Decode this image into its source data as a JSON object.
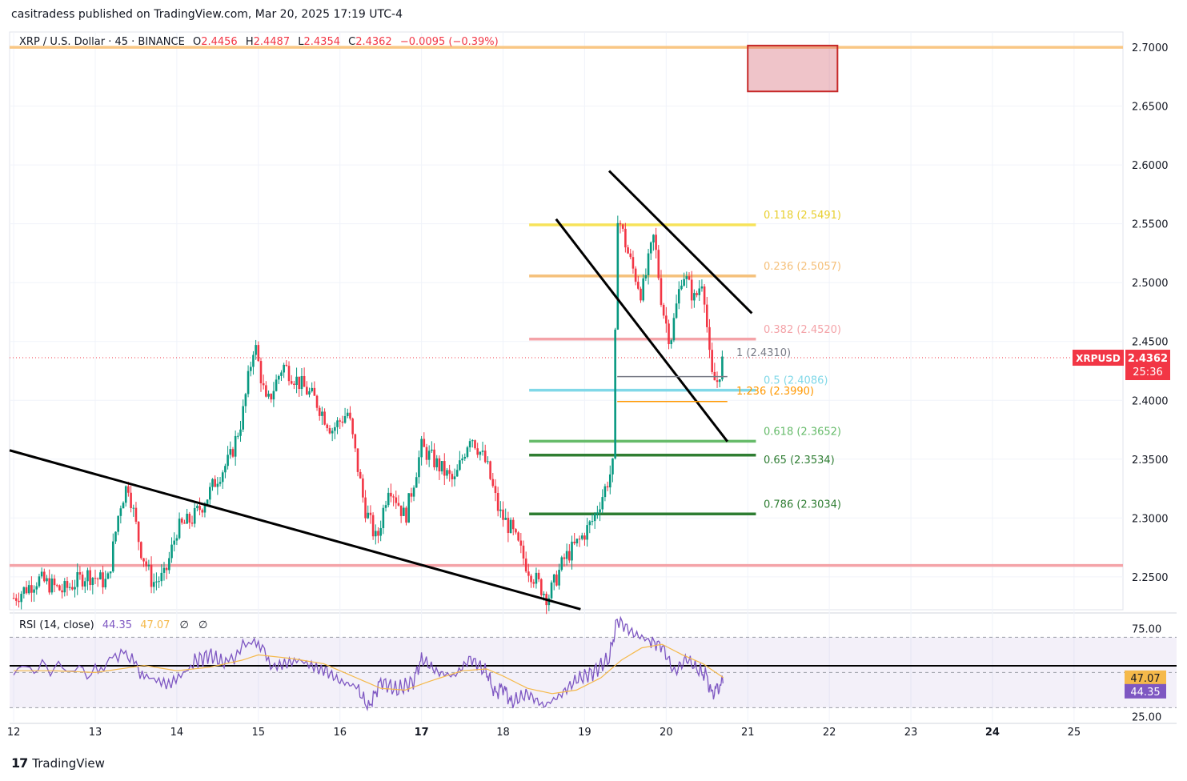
{
  "header": {
    "publisher": "casitradess published on TradingView.com, Mar 20, 2025 17:19 UTC-4"
  },
  "legend": {
    "symbol": "XRP / U.S. Dollar · 45 · BINANCE",
    "o_label": "O",
    "o": "2.4456",
    "h_label": "H",
    "h": "2.4487",
    "l_label": "L",
    "l": "2.4354",
    "c_label": "C",
    "c": "2.4362",
    "change": "−0.0095 (−0.39%)"
  },
  "price_tag": {
    "symbol": "XRPUSD",
    "price": "2.4362",
    "countdown": "25:36",
    "color": "#f23645"
  },
  "rsi_legend": {
    "label": "RSI (14, close)",
    "rsi": "44.35",
    "ma": "47.07",
    "x1": "∅",
    "x2": "∅"
  },
  "rsi_tags": {
    "ma": "47.07",
    "rsi": "44.35"
  },
  "footer": {
    "brand": "TradingView"
  },
  "chart_data": [
    {
      "type": "candlestick",
      "title": "",
      "x_ticks": [
        {
          "label": "12",
          "bold": false
        },
        {
          "label": "13",
          "bold": false
        },
        {
          "label": "14",
          "bold": false
        },
        {
          "label": "15",
          "bold": false
        },
        {
          "label": "16",
          "bold": false
        },
        {
          "label": "17",
          "bold": true
        },
        {
          "label": "18",
          "bold": false
        },
        {
          "label": "19",
          "bold": false
        },
        {
          "label": "20",
          "bold": false
        },
        {
          "label": "21",
          "bold": false
        },
        {
          "label": "22",
          "bold": false
        },
        {
          "label": "23",
          "bold": false
        },
        {
          "label": "24",
          "bold": true
        },
        {
          "label": "25",
          "bold": false
        }
      ],
      "x_range_days": [
        11.95,
        25.6
      ],
      "ylim": [
        2.222,
        2.713
      ],
      "y_ticks": [
        "2.7000",
        "2.6500",
        "2.6000",
        "2.5500",
        "2.5000",
        "2.4500",
        "2.4000",
        "2.3500",
        "2.3000",
        "2.2500"
      ],
      "current_price": 2.4362,
      "colors": {
        "up": "#089981",
        "down": "#f23645"
      },
      "price_path": [
        [
          12.0,
          2.232
        ],
        [
          12.3,
          2.248
        ],
        [
          12.6,
          2.238
        ],
        [
          12.9,
          2.252
        ],
        [
          13.15,
          2.245
        ],
        [
          13.3,
          2.31
        ],
        [
          13.4,
          2.33
        ],
        [
          13.55,
          2.275
        ],
        [
          13.7,
          2.245
        ],
        [
          13.85,
          2.25
        ],
        [
          14.0,
          2.29
        ],
        [
          14.2,
          2.3
        ],
        [
          14.35,
          2.315
        ],
        [
          14.5,
          2.335
        ],
        [
          14.65,
          2.35
        ],
        [
          14.8,
          2.385
        ],
        [
          14.95,
          2.45
        ],
        [
          15.1,
          2.395
        ],
        [
          15.3,
          2.43
        ],
        [
          15.5,
          2.415
        ],
        [
          15.7,
          2.4
        ],
        [
          15.9,
          2.375
        ],
        [
          16.1,
          2.39
        ],
        [
          16.3,
          2.31
        ],
        [
          16.45,
          2.28
        ],
        [
          16.6,
          2.33
        ],
        [
          16.8,
          2.3
        ],
        [
          17.0,
          2.36
        ],
        [
          17.2,
          2.345
        ],
        [
          17.4,
          2.33
        ],
        [
          17.6,
          2.372
        ],
        [
          17.8,
          2.345
        ],
        [
          17.95,
          2.305
        ],
        [
          18.1,
          2.29
        ],
        [
          18.3,
          2.258
        ],
        [
          18.55,
          2.232
        ],
        [
          18.75,
          2.265
        ],
        [
          18.95,
          2.282
        ],
        [
          19.1,
          2.298
        ],
        [
          19.25,
          2.325
        ],
        [
          19.35,
          2.345
        ],
        [
          19.4,
          2.56
        ],
        [
          19.55,
          2.52
        ],
        [
          19.7,
          2.49
        ],
        [
          19.85,
          2.54
        ],
        [
          19.95,
          2.48
        ],
        [
          20.05,
          2.45
        ],
        [
          20.2,
          2.51
        ],
        [
          20.35,
          2.485
        ],
        [
          20.45,
          2.505
        ],
        [
          20.55,
          2.42
        ],
        [
          20.62,
          2.415
        ],
        [
          20.7,
          2.4362
        ]
      ],
      "annotations": {
        "fib_levels": [
          {
            "label": "0.118 (2.5491)",
            "price": 2.5491,
            "color": "#f7e35a"
          },
          {
            "label": "0.236 (2.5057)",
            "price": 2.5057,
            "color": "#f5c07a"
          },
          {
            "label": "0.382 (2.4520)",
            "price": 2.452,
            "color": "#f4a3a8"
          },
          {
            "label": "0.5 (2.4086)",
            "price": 2.4086,
            "color": "#80d8e8"
          },
          {
            "label": "0.618 (2.3652)",
            "price": 2.3652,
            "color": "#66bb6a"
          },
          {
            "label": "0.65 (2.3534)",
            "price": 2.3534,
            "color": "#2e7d32"
          },
          {
            "label": "0.786 (2.3034)",
            "price": 2.3034,
            "color": "#2e7d32"
          }
        ],
        "ext_levels": [
          {
            "label": "1 (2.4310)",
            "price": 2.431,
            "color": "#787b86"
          },
          {
            "label": "1.236 (2.3990)",
            "price": 2.399,
            "color": "#ff9800"
          }
        ],
        "horizontal_lines": [
          {
            "price": 2.7,
            "color": "#f9c784"
          },
          {
            "price": 2.2597,
            "color": "#f4a3a8"
          }
        ],
        "target_box": {
          "day_from": 21.0,
          "day_to": 22.1,
          "price_from": 2.6625,
          "price_to": 2.7015
        },
        "trendlines": [
          {
            "from": [
              11.95,
              2.3575
            ],
            "to": [
              18.95,
              2.2225
            ]
          },
          {
            "from": [
              18.65,
              2.554
            ],
            "to": [
              20.75,
              2.365
            ]
          },
          {
            "from": [
              19.3,
              2.595
            ],
            "to": [
              21.05,
              2.474
            ]
          }
        ]
      }
    },
    {
      "type": "line",
      "title": "RSI (14, close)",
      "ylim": [
        22,
        82
      ],
      "y_ticks": [
        "75.00",
        "25.00"
      ],
      "band": [
        30,
        70
      ],
      "midline": 50,
      "series": [
        {
          "name": "RSI",
          "color": "#7e57c2",
          "path": [
            [
              12.0,
              52
            ],
            [
              12.5,
              53
            ],
            [
              13.0,
              50
            ],
            [
              13.35,
              63
            ],
            [
              13.6,
              48
            ],
            [
              13.9,
              44
            ],
            [
              14.2,
              56
            ],
            [
              14.4,
              60
            ],
            [
              14.6,
              55
            ],
            [
              14.95,
              70
            ],
            [
              15.2,
              52
            ],
            [
              15.5,
              57
            ],
            [
              15.8,
              52
            ],
            [
              16.0,
              45
            ],
            [
              16.2,
              42
            ],
            [
              16.35,
              30
            ],
            [
              16.5,
              45
            ],
            [
              16.7,
              40
            ],
            [
              16.9,
              45
            ],
            [
              17.0,
              58
            ],
            [
              17.2,
              50
            ],
            [
              17.4,
              48
            ],
            [
              17.6,
              58
            ],
            [
              17.8,
              50
            ],
            [
              17.9,
              38
            ],
            [
              18.0,
              42
            ],
            [
              18.1,
              33
            ],
            [
              18.3,
              38
            ],
            [
              18.5,
              31
            ],
            [
              18.7,
              37
            ],
            [
              18.9,
              46
            ],
            [
              19.1,
              50
            ],
            [
              19.3,
              58
            ],
            [
              19.4,
              80
            ],
            [
              19.6,
              72
            ],
            [
              19.8,
              68
            ],
            [
              19.95,
              65
            ],
            [
              20.1,
              50
            ],
            [
              20.25,
              58
            ],
            [
              20.4,
              51
            ],
            [
              20.5,
              48
            ],
            [
              20.55,
              38
            ],
            [
              20.65,
              42
            ],
            [
              20.7,
              44.35
            ]
          ]
        },
        {
          "name": "RSI-based MA",
          "color": "#f5b94a",
          "path": [
            [
              12.0,
              51
            ],
            [
              12.5,
              51
            ],
            [
              13.0,
              50
            ],
            [
              13.3,
              52
            ],
            [
              13.6,
              54
            ],
            [
              14.0,
              51
            ],
            [
              14.4,
              53
            ],
            [
              14.8,
              57
            ],
            [
              15.0,
              60
            ],
            [
              15.4,
              58
            ],
            [
              15.8,
              55
            ],
            [
              16.2,
              47
            ],
            [
              16.5,
              41
            ],
            [
              16.8,
              40
            ],
            [
              17.1,
              45
            ],
            [
              17.5,
              51
            ],
            [
              17.8,
              52
            ],
            [
              18.0,
              48
            ],
            [
              18.3,
              41
            ],
            [
              18.6,
              38
            ],
            [
              18.9,
              40
            ],
            [
              19.2,
              47
            ],
            [
              19.45,
              57
            ],
            [
              19.7,
              64
            ],
            [
              19.95,
              66
            ],
            [
              20.2,
              60
            ],
            [
              20.45,
              55
            ],
            [
              20.7,
              47.07
            ]
          ]
        }
      ]
    }
  ]
}
